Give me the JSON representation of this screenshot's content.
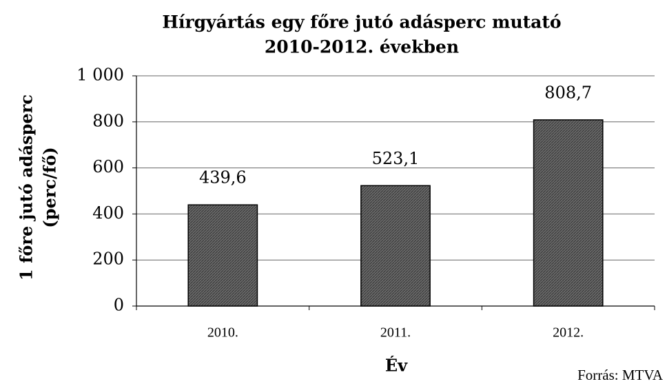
{
  "chart_data": {
    "type": "bar",
    "title": "Hírgyártás egy főre jutó adásperc mutató",
    "subtitle": "2010-2012. években",
    "ylabel": [
      "1 főre jutó adásperc",
      "(perc/fő)"
    ],
    "xlabel": "Év",
    "source": "Forrás: MTVA",
    "categories": [
      "2010.",
      "2011.",
      "2012."
    ],
    "values": [
      439.6,
      523.1,
      808.7
    ],
    "value_labels": [
      "439,6",
      "523,1",
      "808,7"
    ],
    "color": "#555555",
    "ylim": [
      0,
      1000
    ],
    "yticks": [
      0,
      200,
      400,
      600,
      800,
      {
        "value": 1000,
        "label": "1 000"
      }
    ],
    "grid": true
  }
}
